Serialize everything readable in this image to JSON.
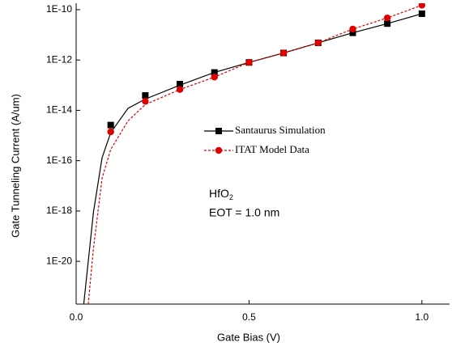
{
  "chart_data": {
    "type": "line",
    "x_label": "Gate Bias (V)",
    "y_label": "Gate Tunneling Current (A/um)",
    "log_y": true,
    "xlim": [
      0,
      1.08
    ],
    "ylim": [
      2e-22,
      1.8e-10
    ],
    "xticks": [
      {
        "value": 0,
        "label": "0.0"
      },
      0.5,
      {
        "value": 1,
        "label": "1.0"
      }
    ],
    "yticks": [
      {
        "value": 1e-20,
        "label": "1E-20"
      },
      {
        "value": 1e-18,
        "label": "1E-18"
      },
      {
        "value": 1e-16,
        "label": "1E-16"
      },
      {
        "value": 1e-14,
        "label": "1E-14"
      },
      {
        "value": 1e-12,
        "label": "1E-12"
      },
      {
        "value": 1e-10,
        "label": "1E-10"
      }
    ],
    "series": [
      {
        "name": "Santaurus Simulation",
        "color": "#000000",
        "marker": "square",
        "dash": false,
        "x": [
          0.1,
          0.2,
          0.3,
          0.4,
          0.5,
          0.6,
          0.7,
          0.8,
          0.9,
          1.0
        ],
        "values": [
          2.6e-15,
          3.9e-14,
          1.1e-13,
          3.2e-13,
          8e-13,
          1.9e-12,
          4.8e-12,
          1.2e-11,
          2.8e-11,
          6.9e-11
        ],
        "line_x": [
          0.022,
          0.05,
          0.075,
          0.1,
          0.15,
          0.2,
          0.3,
          0.4,
          0.5,
          0.6,
          0.7,
          0.8,
          0.9,
          1.0
        ],
        "line_values": [
          2e-22,
          8.9e-19,
          1.3e-16,
          1.3e-15,
          1.2e-14,
          2.8e-14,
          1e-13,
          3.2e-13,
          8e-13,
          1.9e-12,
          4.8e-12,
          1.2e-11,
          2.8e-11,
          6.9e-11
        ]
      },
      {
        "name": "ITAT Model Data",
        "color": "#e00000",
        "marker": "circle",
        "dash": true,
        "x": [
          0.1,
          0.2,
          0.3,
          0.4,
          0.5,
          0.6,
          0.7,
          0.8,
          0.9,
          1.0
        ],
        "values": [
          1.4e-15,
          2.3e-14,
          6.7e-14,
          2.1e-13,
          8e-13,
          1.9e-12,
          4.8e-12,
          1.7e-11,
          4.7e-11,
          1.5e-10
        ],
        "line_x": [
          0.035,
          0.05,
          0.075,
          0.1,
          0.15,
          0.2,
          0.3,
          0.4,
          0.5,
          0.6,
          0.7,
          0.8,
          0.9,
          1.0
        ],
        "line_values": [
          2e-22,
          3.2e-20,
          2e-17,
          2.8e-16,
          3.8e-15,
          1.7e-14,
          6.7e-14,
          2.1e-13,
          8e-13,
          1.9e-12,
          4.8e-12,
          1.7e-11,
          4.7e-11,
          1.5e-10
        ]
      }
    ],
    "annotations": [
      {
        "text": "HfO",
        "subscript": "2"
      },
      {
        "text": "EOT = 1.0 nm"
      }
    ]
  }
}
